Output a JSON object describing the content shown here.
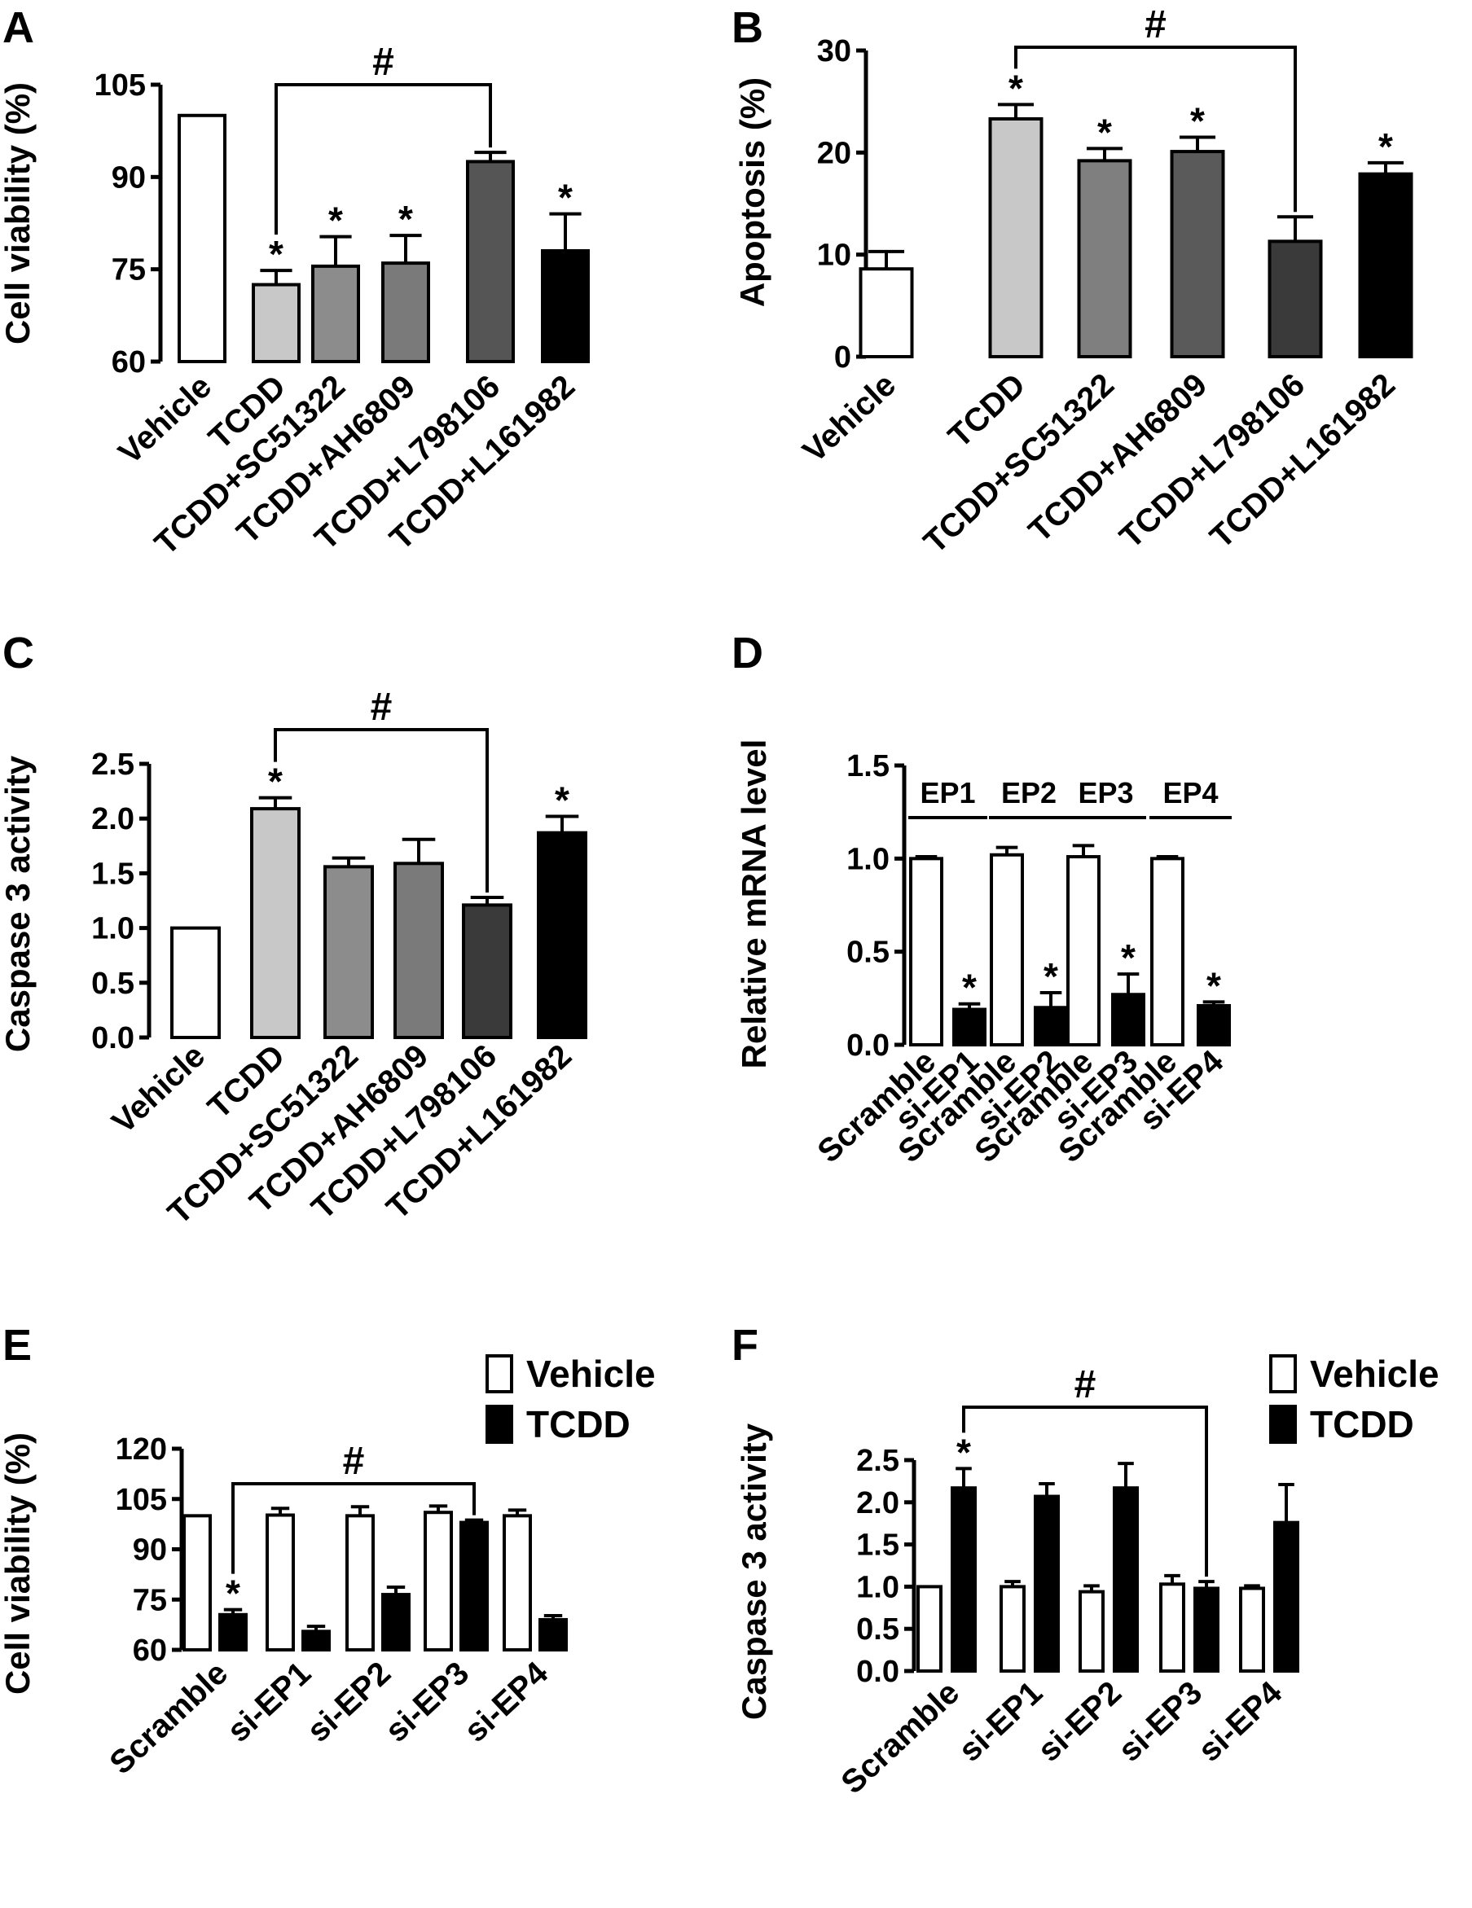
{
  "chart_data": [
    {
      "panel": "A",
      "type": "bar",
      "ylabel": "Cell viability (%)",
      "ylim": [
        60,
        105
      ],
      "yticks": [
        "60",
        "75",
        "90",
        "105"
      ],
      "categories": [
        "Vehicle",
        "TCDD",
        "TCDD+SC51322",
        "TCDD+AH6809",
        "TCDD+L798106",
        "TCDD+L161982"
      ],
      "values": [
        100,
        72.5,
        75.5,
        76,
        92.5,
        78
      ],
      "errors": [
        0,
        2.3,
        4.8,
        4.5,
        1.5,
        6
      ],
      "fills": [
        "#ffffff",
        "#c8c8c8",
        "#8c8c8c",
        "#7a7a7a",
        "#555555",
        "#000000"
      ],
      "stars": [
        false,
        true,
        true,
        true,
        false,
        true
      ],
      "star_label": "*",
      "hash": {
        "from": 1,
        "to": 4,
        "label": "#"
      }
    },
    {
      "panel": "B",
      "type": "bar",
      "ylabel": "Apoptosis (%)",
      "ylim": [
        0,
        30
      ],
      "yticks": [
        "0",
        "10",
        "20",
        "30"
      ],
      "categories": [
        "Vehicle",
        "TCDD",
        "TCDD+SC51322",
        "TCDD+AH6809",
        "TCDD+L798106",
        "TCDD+L161982"
      ],
      "values": [
        8.6,
        23.3,
        19.2,
        20.1,
        11.3,
        17.9
      ],
      "errors": [
        1.7,
        1.4,
        1.2,
        1.4,
        2.4,
        1.1
      ],
      "fills": [
        "#ffffff",
        "#c8c8c8",
        "#7f7f7f",
        "#5a5a5a",
        "#3a3a3a",
        "#000000"
      ],
      "stars": [
        false,
        true,
        true,
        true,
        false,
        true
      ],
      "star_label": "*",
      "hash": {
        "from": 1,
        "to": 4,
        "label": "#"
      }
    },
    {
      "panel": "C",
      "type": "bar",
      "ylabel": "Caspase 3 activity",
      "ylim": [
        0,
        2.5
      ],
      "yticks": [
        "0.0",
        "0.5",
        "1.0",
        "1.5",
        "2.0",
        "2.5"
      ],
      "categories": [
        "Vehicle",
        "TCDD",
        "TCDD+SC51322",
        "TCDD+AH6809",
        "TCDD+L798106",
        "TCDD+L161982"
      ],
      "values": [
        1.0,
        2.09,
        1.56,
        1.59,
        1.21,
        1.87
      ],
      "errors": [
        0,
        0.1,
        0.08,
        0.22,
        0.07,
        0.15
      ],
      "fills": [
        "#ffffff",
        "#c8c8c8",
        "#8c8c8c",
        "#7a7a7a",
        "#3a3a3a",
        "#000000"
      ],
      "stars": [
        false,
        true,
        false,
        false,
        false,
        true
      ],
      "star_label": "*",
      "hash": {
        "from": 1,
        "to": 4,
        "label": "#"
      }
    },
    {
      "panel": "D",
      "type": "bar",
      "ylabel": "Relative mRNA level",
      "ylim": [
        0,
        1.5
      ],
      "yticks": [
        "0.0",
        "0.5",
        "1.0",
        "1.5"
      ],
      "categories": [
        "Scramble",
        "si-EP1",
        "Scramble",
        "si-EP2",
        "Scramble",
        "si-EP3",
        "Scramble",
        "si-EP4"
      ],
      "values": [
        1.0,
        0.19,
        1.02,
        0.2,
        1.01,
        0.27,
        1.0,
        0.21
      ],
      "errors": [
        0.01,
        0.03,
        0.04,
        0.08,
        0.06,
        0.11,
        0.01,
        0.02
      ],
      "fills": [
        "#ffffff",
        "#000000",
        "#ffffff",
        "#000000",
        "#ffffff",
        "#000000",
        "#ffffff",
        "#000000"
      ],
      "stars": [
        false,
        true,
        false,
        true,
        false,
        true,
        false,
        true
      ],
      "star_label": "*",
      "groups": [
        "EP1",
        "EP2",
        "EP3",
        "EP4"
      ]
    },
    {
      "panel": "E",
      "type": "bar",
      "ylabel": "Cell viability (%)",
      "ylim": [
        60,
        120
      ],
      "yticks": [
        "60",
        "75",
        "90",
        "105",
        "120"
      ],
      "categories": [
        "Scramble",
        "si-EP1",
        "si-EP2",
        "si-EP3",
        "si-EP4"
      ],
      "series": [
        {
          "name": "Vehicle",
          "color": "#ffffff",
          "values": [
            100,
            100.2,
            100,
            101,
            100
          ],
          "errors": [
            0,
            2,
            2.7,
            1.9,
            1.7
          ]
        },
        {
          "name": "TCDD",
          "color": "#000000",
          "values": [
            70.5,
            65.5,
            76.5,
            98,
            69
          ],
          "errors": [
            1.5,
            1.5,
            2.2,
            0.7,
            1.2
          ]
        }
      ],
      "stars": [
        true,
        false,
        false,
        false,
        false
      ],
      "star_label": "*",
      "hash": {
        "from": 0,
        "to": 3,
        "label": "#"
      },
      "legend_position": "top-right"
    },
    {
      "panel": "F",
      "type": "bar",
      "ylabel": "Caspase 3 activity",
      "ylim": [
        0,
        2.5
      ],
      "yticks": [
        "0.0",
        "0.5",
        "1.0",
        "1.5",
        "2.0",
        "2.5"
      ],
      "categories": [
        "Scramble",
        "si-EP1",
        "si-EP2",
        "si-EP3",
        "si-EP4"
      ],
      "series": [
        {
          "name": "Vehicle",
          "color": "#ffffff",
          "values": [
            1.0,
            1.0,
            0.94,
            1.03,
            0.98
          ],
          "errors": [
            0,
            0.06,
            0.07,
            0.1,
            0.03
          ]
        },
        {
          "name": "TCDD",
          "color": "#000000",
          "values": [
            2.17,
            2.07,
            2.17,
            0.98,
            1.76
          ],
          "errors": [
            0.23,
            0.15,
            0.29,
            0.08,
            0.45
          ]
        }
      ],
      "stars": [
        true,
        false,
        false,
        false,
        false
      ],
      "star_label": "*",
      "hash": {
        "from": 0,
        "to": 3,
        "label": "#"
      },
      "legend_position": "top-right"
    }
  ]
}
